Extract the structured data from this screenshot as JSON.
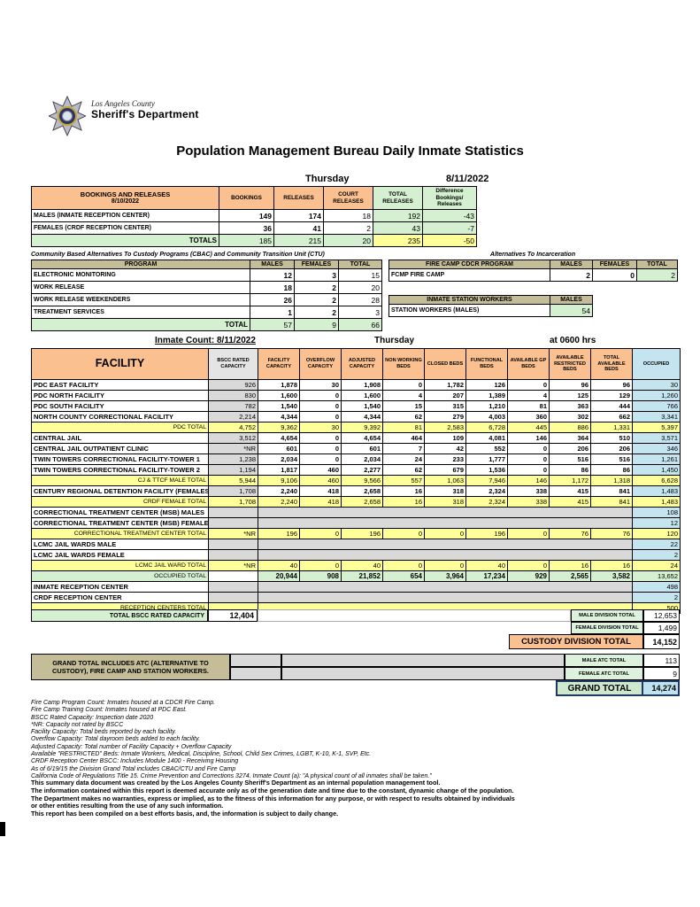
{
  "page": {
    "logo_county": "Los Angeles County",
    "logo_dept": "Sheriff's Department",
    "title": "Population Management Bureau Daily Inmate Statistics",
    "day": "Thursday",
    "date": "8/11/2022"
  },
  "bookings": {
    "header": "BOOKINGS AND RELEASES",
    "header_date": "8/10/2022",
    "columns": [
      "BOOKINGS",
      "RELEASES",
      "COURT RELEASES",
      "TOTAL RELEASES",
      "Difference Bookings/ Releases"
    ],
    "rows": [
      {
        "label": "MALES (INMATE RECEPTION CENTER)",
        "values": [
          "149",
          "174",
          "18",
          "192",
          "-43"
        ]
      },
      {
        "label": "FEMALES (CRDF RECEPTION CENTER)",
        "values": [
          "36",
          "41",
          "2",
          "43",
          "-7"
        ]
      }
    ],
    "totals": {
      "label": "TOTALS",
      "values": [
        "185",
        "215",
        "20",
        "235",
        "-50"
      ]
    }
  },
  "cbac": {
    "title": "Community Based Alternatives To Custody Programs (CBAC) and Community Transition Unit (CTU)",
    "columns": [
      "PROGRAM",
      "MALES",
      "FEMALES",
      "TOTAL"
    ],
    "rows": [
      {
        "label": "ELECTRONIC MONITORING",
        "values": [
          "12",
          "3",
          "15"
        ]
      },
      {
        "label": "WORK RELEASE",
        "values": [
          "18",
          "2",
          "20"
        ]
      },
      {
        "label": "WORK RELEASE WEEKENDERS",
        "values": [
          "26",
          "2",
          "28"
        ]
      },
      {
        "label": "TREATMENT SERVICES",
        "values": [
          "1",
          "2",
          "3"
        ]
      }
    ],
    "totals": {
      "label": "TOTAL",
      "values": [
        "57",
        "9",
        "66"
      ]
    }
  },
  "alternatives": {
    "title": "Alternatives To Incarceration",
    "fire_camp": {
      "columns": [
        "FIRE CAMP CDCR PROGRAM",
        "MALES",
        "FEMALES",
        "TOTAL"
      ],
      "row": {
        "label": "FCMP FIRE CAMP",
        "values": [
          "2",
          "0",
          "2"
        ]
      }
    },
    "station_workers": {
      "columns": [
        "INMATE STATION WORKERS",
        "MALES"
      ],
      "row": {
        "label": "STATION WORKERS (MALES)",
        "value": "54"
      }
    }
  },
  "facility_table": {
    "caption_left": "Inmate Count: 8/11/2022",
    "caption_mid": "Thursday",
    "caption_right": "at 0600 hrs",
    "columns": [
      "FACILITY",
      "BSCC RATED CAPACITY",
      "FACILITY CAPACITY",
      "OVERFLOW CAPACITY",
      "ADJUSTED CAPACITY",
      "NON WORKING BEDS",
      "CLOSED BEDS",
      "FUNCTIONAL BEDS",
      "AVAILABLE GP BEDS",
      "AVAILABLE RESTRICTED BEDS",
      "TOTAL AVAILABLE BEDS",
      "OCCUPIED"
    ],
    "rows": [
      {
        "type": "fac",
        "label": "PDC EAST FACILITY",
        "bscc": "926",
        "vals": [
          "1,878",
          "30",
          "1,908",
          "0",
          "1,782",
          "126",
          "0",
          "96",
          "96"
        ],
        "occ": "30"
      },
      {
        "type": "fac",
        "label": "PDC NORTH FACILITY",
        "bscc": "830",
        "vals": [
          "1,600",
          "0",
          "1,600",
          "4",
          "207",
          "1,389",
          "4",
          "125",
          "129"
        ],
        "occ": "1,260"
      },
      {
        "type": "fac",
        "label": "PDC SOUTH FACILITY",
        "bscc": "782",
        "vals": [
          "1,540",
          "0",
          "1,540",
          "15",
          "315",
          "1,210",
          "81",
          "363",
          "444"
        ],
        "occ": "766"
      },
      {
        "type": "fac",
        "label": "NORTH COUNTY CORRECTIONAL FACILITY",
        "bscc": "2,214",
        "vals": [
          "4,344",
          "0",
          "4,344",
          "62",
          "279",
          "4,003",
          "360",
          "302",
          "662"
        ],
        "occ": "3,341"
      },
      {
        "type": "tot",
        "label": "PDC TOTAL",
        "bscc": "4,752",
        "vals": [
          "9,362",
          "30",
          "9,392",
          "81",
          "2,583",
          "6,728",
          "445",
          "886",
          "1,331"
        ],
        "occ": "5,397"
      },
      {
        "type": "fac",
        "label": "CENTRAL JAIL",
        "bscc": "3,512",
        "vals": [
          "4,654",
          "0",
          "4,654",
          "464",
          "109",
          "4,081",
          "146",
          "364",
          "510"
        ],
        "occ": "3,571"
      },
      {
        "type": "fac",
        "label": "CENTRAL JAIL OUTPATIENT CLINIC",
        "bscc": "*NR",
        "vals": [
          "601",
          "0",
          "601",
          "7",
          "42",
          "552",
          "0",
          "206",
          "206"
        ],
        "occ": "346"
      },
      {
        "type": "fac",
        "label": "TWIN TOWERS CORRECTIONAL FACILITY-TOWER 1",
        "bscc": "1,238",
        "vals": [
          "2,034",
          "0",
          "2,034",
          "24",
          "233",
          "1,777",
          "0",
          "516",
          "516"
        ],
        "occ": "1,261"
      },
      {
        "type": "fac",
        "label": "TWIN TOWERS CORRECTIONAL FACILITY-TOWER 2",
        "bscc": "1,194",
        "vals": [
          "1,817",
          "460",
          "2,277",
          "62",
          "679",
          "1,536",
          "0",
          "86",
          "86"
        ],
        "occ": "1,450"
      },
      {
        "type": "tot",
        "label": "CJ & TTCF MALE TOTAL",
        "bscc": "5,944",
        "vals": [
          "9,106",
          "460",
          "9,566",
          "557",
          "1,063",
          "7,946",
          "146",
          "1,172",
          "1,318"
        ],
        "occ": "6,628"
      },
      {
        "type": "fac",
        "label": "CENTURY REGIONAL DETENTION FACILITY (FEMALES)",
        "bscc": "1,708",
        "vals": [
          "2,240",
          "418",
          "2,658",
          "16",
          "318",
          "2,324",
          "338",
          "415",
          "841"
        ],
        "occ": "1,483"
      },
      {
        "type": "tot",
        "label": "CRDF FEMALE TOTAL",
        "bscc": "1,708",
        "vals": [
          "2,240",
          "418",
          "2,658",
          "16",
          "318",
          "2,324",
          "338",
          "415",
          "841"
        ],
        "occ": "1,483"
      },
      {
        "type": "grayrow",
        "label": "CORRECTIONAL TREATMENT CENTER (MSB) MALES",
        "bscc": "",
        "occ": "108"
      },
      {
        "type": "grayrow",
        "label": "CORRECTIONAL TREATMENT CENTER (MSB) FEMALES",
        "bscc": "",
        "occ": "12"
      },
      {
        "type": "tot",
        "label": "CORRECTIONAL TREATMENT CENTER  TOTAL",
        "bscc": "*NR",
        "vals": [
          "196",
          "0",
          "196",
          "0",
          "0",
          "196",
          "0",
          "76",
          "76"
        ],
        "occ": "120"
      },
      {
        "type": "grayrow",
        "label": "LCMC JAIL WARDS MALE",
        "bscc": "",
        "occ": "22"
      },
      {
        "type": "grayrow",
        "label": "LCMC JAIL WARDS FEMALE",
        "bscc": "",
        "occ": "2"
      },
      {
        "type": "tot",
        "label": "LCMC JAIL WARD TOTAL",
        "bscc": "*NR",
        "vals": [
          "40",
          "0",
          "40",
          "0",
          "0",
          "40",
          "0",
          "16",
          "16"
        ],
        "occ": "24"
      },
      {
        "type": "occtot",
        "label": "OCCUPIED TOTAL",
        "bscc": "",
        "vals": [
          "20,944",
          "908",
          "21,852",
          "654",
          "3,964",
          "17,234",
          "929",
          "2,565",
          "3,582"
        ],
        "occ": "13,652"
      },
      {
        "type": "grayrow",
        "label": "INMATE RECEPTION CENTER",
        "bscc": "",
        "occ": "498"
      },
      {
        "type": "grayrow",
        "label": "CRDF RECEPTION CENTER",
        "bscc": "",
        "occ": "2"
      },
      {
        "type": "totmerge",
        "label": "RECEPTION CENTERS TOTAL",
        "bscc": "",
        "occ": "500"
      }
    ]
  },
  "summary": {
    "total_bscc_label": "TOTAL BSCC RATED CAPACITY",
    "total_bscc_value": "12,404",
    "male_division_label": "MALE DIVISION TOTAL",
    "male_division_value": "12,653",
    "female_division_label": "FEMALE DIVISION TOTAL",
    "female_division_value": "1,499",
    "custody_division_label": "CUSTODY DIVISION TOTAL",
    "custody_division_value": "14,152"
  },
  "grand": {
    "note": "GRAND TOTAL INCLUDES ATC (ALTERNATIVE TO CUSTODY), FIRE CAMP AND STATION WORKERS.",
    "male_atc_label": "MALE ATC TOTAL",
    "male_atc_value": "113",
    "female_atc_label": "FEMALE ATC TOTAL",
    "female_atc_value": "9",
    "grand_total_label": "GRAND TOTAL",
    "grand_total_value": "14,274"
  },
  "footnotes": [
    "Fire Camp Program Count: Inmates housed at a CDCR Fire Camp.",
    "Fire Camp Training Count: Inmates housed at PDC East.",
    "BSCC Rated Capacity: Inspection date 2020",
    "*NR: Capacity not rated by BSCC",
    "Facility Capacity: Total beds reported by each facility.",
    "Overflow Capacity: Total dayroom beds added to each facility.",
    "Adjusted Capacity: Total number of Facility Capacity + Overflow Capacity",
    "Available \"RESTRICTED\" Beds: Inmate Workers, Medical, Discipline, School, Child Sex Crimes, LGBT, K-10, K-1, SVP, Etc.",
    "CRDF Reception Center BSCC: Includes Module 1400 - Receiving Housing",
    "As of 6/19/15 the Division Grand Total includes CBAC/CTU and Fire Camp",
    "California Code of Regulations Title 15. Crime Prevention and Corrections 3274. Inmate Count (a): \"A physical count of all inmates shall be taken.\""
  ],
  "disclaimer": [
    "This summary data document was created by the Los Angeles County Sheriff's Department as an internal population management tool.",
    "The information contained within this report is deemed accurate only as of the generation date and time due to the constant, dynamic change of the population.",
    "The Department makes no warranties, express or implied, as to the fitness of this information for any purpose, or with respect to results obtained by individuals",
    "or other entities resulting from the use of any such information.",
    "This report has been compiled on a best efforts basis, and, the information is subject to daily change."
  ]
}
